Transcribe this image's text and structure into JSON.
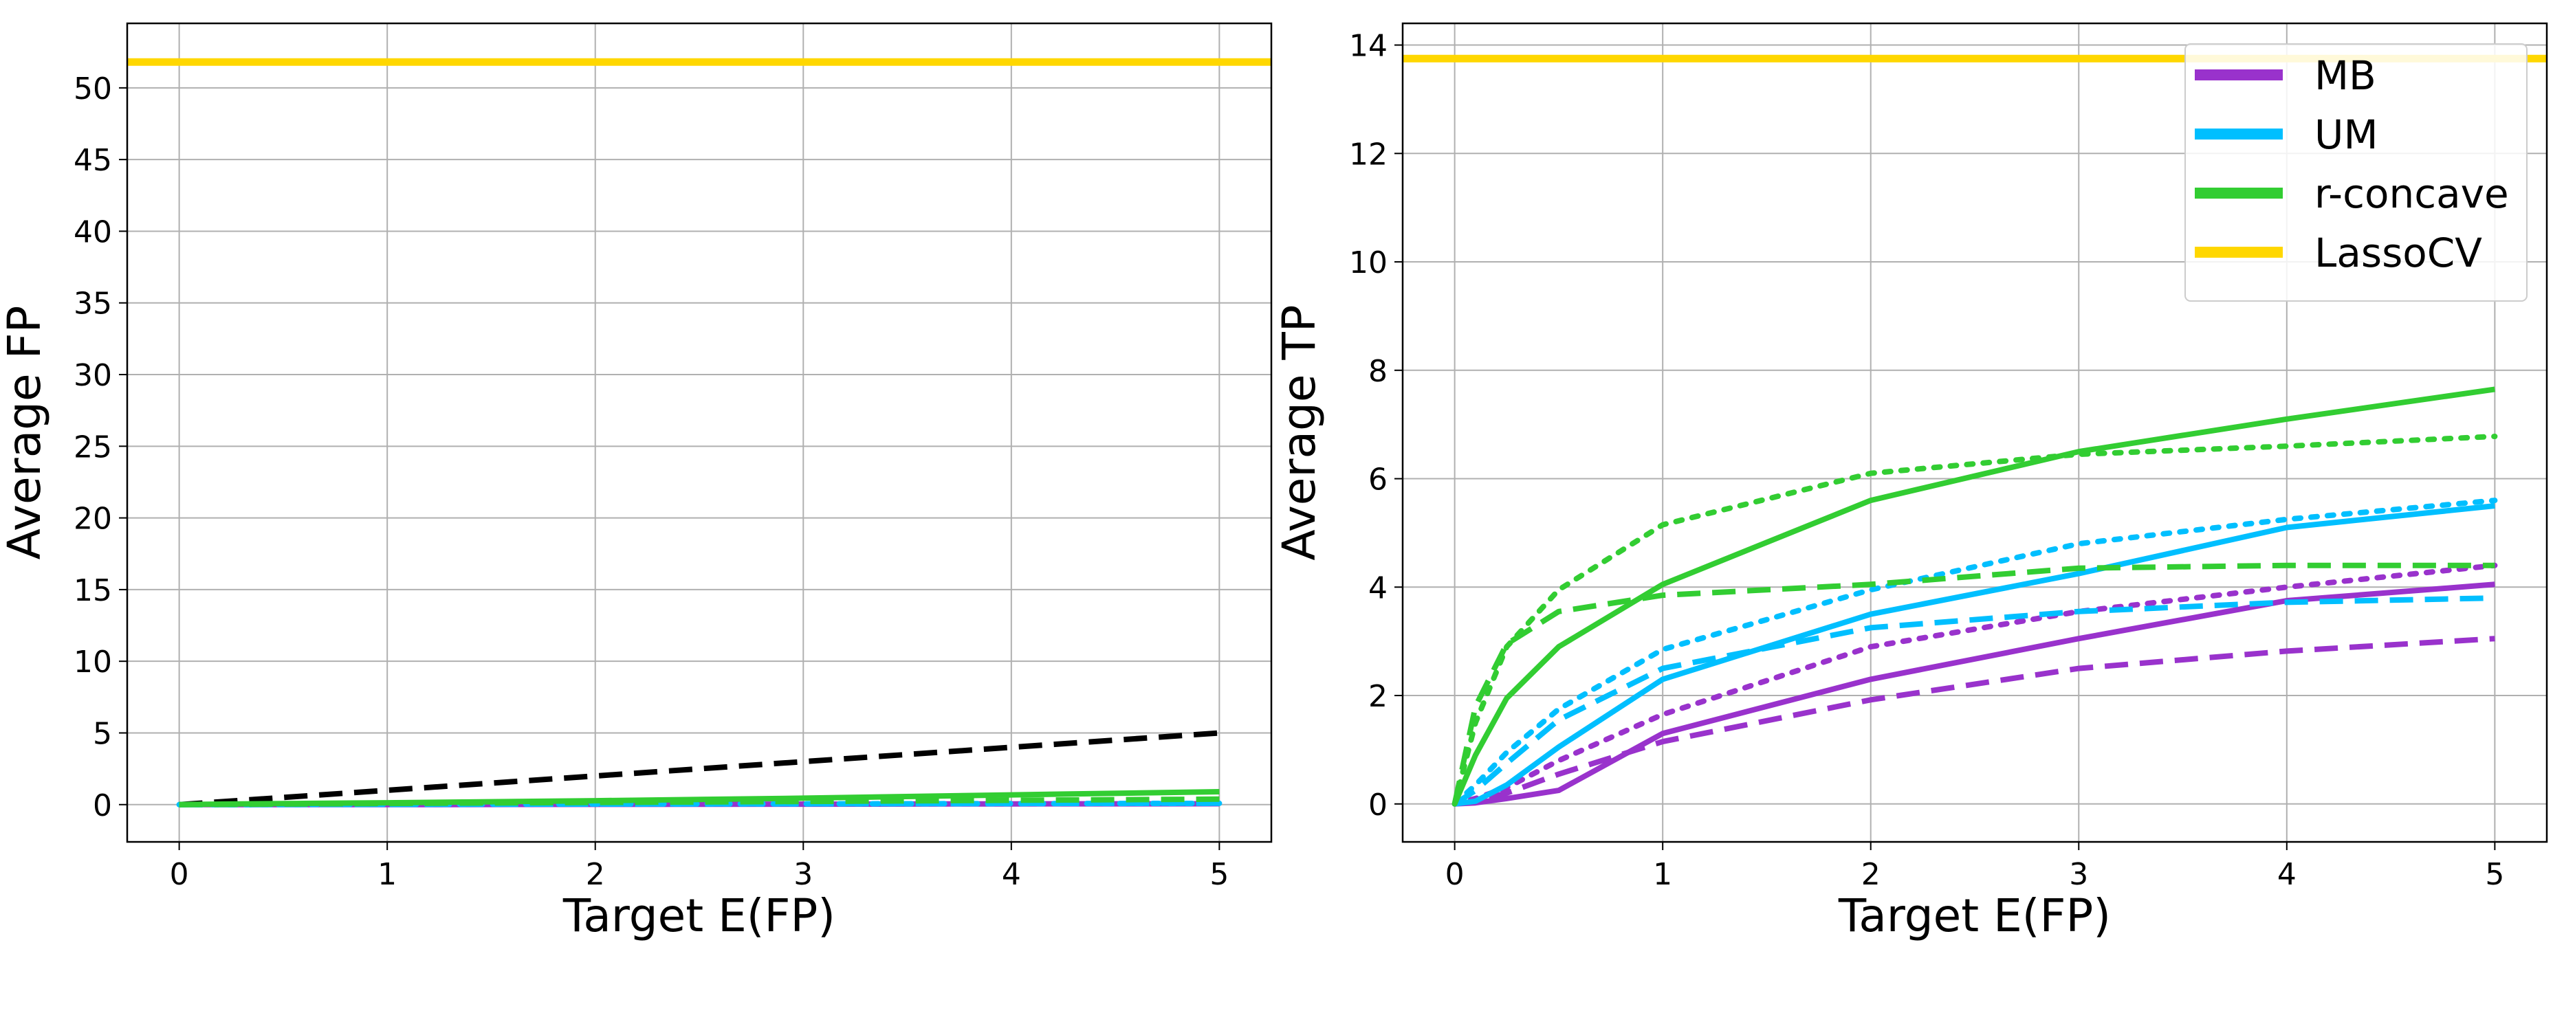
{
  "colors": {
    "MB": "#9932CC",
    "UM": "#00BFFF",
    "r-concave": "#32CD32",
    "LassoCV": "#FFD700",
    "reference": "#000000",
    "grid": "#b0b0b0"
  },
  "chart_data": [
    {
      "type": "line",
      "xlabel": "Target E(FP)",
      "ylabel": "Average FP",
      "xlim": [
        -0.25,
        5.25
      ],
      "ylim": [
        -2.6,
        54.5
      ],
      "xticks": [
        "0",
        "1",
        "2",
        "3",
        "4",
        "5"
      ],
      "yticks": [
        "0",
        "5",
        "10",
        "15",
        "20",
        "25",
        "30",
        "35",
        "40",
        "45",
        "50"
      ],
      "grid": true,
      "series": [
        {
          "method": "LassoCV",
          "style": "solid",
          "x": [
            -0.25,
            5.25
          ],
          "y": [
            51.8,
            51.8
          ]
        },
        {
          "method": "reference",
          "style": "dashed",
          "x": [
            0,
            5
          ],
          "y": [
            0,
            5
          ]
        },
        {
          "method": "MB",
          "style": "solid",
          "x": [
            0,
            0.1,
            0.25,
            0.5,
            1,
            2,
            3,
            4,
            5
          ],
          "y": [
            0,
            0,
            0,
            0,
            0,
            0.02,
            0.03,
            0.05,
            0.06
          ]
        },
        {
          "method": "UM",
          "style": "dotted",
          "x": [
            0,
            0.1,
            0.25,
            0.5,
            1,
            2,
            3,
            4,
            5
          ],
          "y": [
            0,
            0,
            0,
            0.01,
            0.02,
            0.04,
            0.05,
            0.07,
            0.09
          ]
        },
        {
          "method": "UM",
          "style": "dashed",
          "x": [
            0,
            0.1,
            0.25,
            0.5,
            1,
            2,
            3,
            4,
            5
          ],
          "y": [
            0,
            0,
            0,
            0.01,
            0.02,
            0.04,
            0.06,
            0.08,
            0.1
          ]
        },
        {
          "method": "r-concave",
          "style": "dashed",
          "x": [
            0,
            0.1,
            0.25,
            0.5,
            1,
            2,
            3,
            4,
            5
          ],
          "y": [
            0,
            0.01,
            0.02,
            0.04,
            0.08,
            0.15,
            0.22,
            0.3,
            0.38
          ]
        },
        {
          "method": "r-concave",
          "style": "solid",
          "x": [
            0,
            0.1,
            0.25,
            0.5,
            1,
            2,
            3,
            4,
            5
          ],
          "y": [
            0,
            0.02,
            0.04,
            0.07,
            0.13,
            0.27,
            0.45,
            0.68,
            0.9
          ]
        }
      ]
    },
    {
      "type": "line",
      "xlabel": "Target E(FP)",
      "ylabel": "Average TP",
      "xlim": [
        -0.25,
        5.25
      ],
      "ylim": [
        -0.7,
        14.4
      ],
      "xticks": [
        "0",
        "1",
        "2",
        "3",
        "4",
        "5"
      ],
      "yticks": [
        "0",
        "2",
        "4",
        "6",
        "8",
        "10",
        "12",
        "14"
      ],
      "grid": true,
      "legend": {
        "position": "upper right",
        "entries": [
          {
            "label": "MB",
            "method": "MB"
          },
          {
            "label": "UM",
            "method": "UM"
          },
          {
            "label": "r-concave",
            "method": "r-concave"
          },
          {
            "label": "LassoCV",
            "method": "LassoCV"
          }
        ]
      },
      "series": [
        {
          "method": "LassoCV",
          "style": "solid",
          "x": [
            -0.25,
            5.25
          ],
          "y": [
            13.75,
            13.75
          ]
        },
        {
          "method": "MB",
          "style": "solid",
          "x": [
            0,
            0.1,
            0.25,
            0.5,
            1,
            2,
            3,
            4,
            5
          ],
          "y": [
            0,
            0.02,
            0.1,
            0.25,
            1.3,
            2.3,
            3.05,
            3.75,
            4.05
          ]
        },
        {
          "method": "MB",
          "style": "dashed",
          "x": [
            0,
            0.1,
            0.25,
            0.5,
            1,
            2,
            3,
            4,
            5
          ],
          "y": [
            0,
            0.05,
            0.2,
            0.55,
            1.15,
            1.92,
            2.5,
            2.82,
            3.05
          ]
        },
        {
          "method": "MB",
          "style": "dotted",
          "x": [
            0,
            0.1,
            0.25,
            0.5,
            1,
            2,
            3,
            4,
            5
          ],
          "y": [
            0,
            0.1,
            0.3,
            0.8,
            1.65,
            2.9,
            3.55,
            4.0,
            4.4
          ]
        },
        {
          "method": "UM",
          "style": "solid",
          "x": [
            0,
            0.1,
            0.25,
            0.5,
            1,
            2,
            3,
            4,
            5
          ],
          "y": [
            0,
            0.05,
            0.35,
            1.05,
            2.3,
            3.5,
            4.25,
            5.1,
            5.5
          ]
        },
        {
          "method": "UM",
          "style": "dashed",
          "x": [
            0,
            0.1,
            0.25,
            0.5,
            1,
            2,
            3,
            4,
            5
          ],
          "y": [
            0,
            0.25,
            0.75,
            1.55,
            2.5,
            3.25,
            3.55,
            3.72,
            3.8
          ]
        },
        {
          "method": "UM",
          "style": "dotted",
          "x": [
            0,
            0.1,
            0.25,
            0.5,
            1,
            2,
            3,
            4,
            5
          ],
          "y": [
            0,
            0.35,
            0.95,
            1.75,
            2.85,
            3.95,
            4.8,
            5.25,
            5.6
          ]
        },
        {
          "method": "r-concave",
          "style": "solid",
          "x": [
            0,
            0.1,
            0.25,
            0.5,
            1,
            2,
            3,
            4,
            5
          ],
          "y": [
            0,
            0.9,
            1.95,
            2.9,
            4.05,
            5.6,
            6.5,
            7.1,
            7.65
          ]
        },
        {
          "method": "r-concave",
          "style": "dashed",
          "x": [
            0,
            0.1,
            0.25,
            0.5,
            1,
            2,
            3,
            4,
            5
          ],
          "y": [
            0,
            1.8,
            2.95,
            3.55,
            3.85,
            4.05,
            4.35,
            4.4,
            4.4
          ]
        },
        {
          "method": "r-concave",
          "style": "dotted",
          "x": [
            0,
            0.1,
            0.25,
            0.5,
            1,
            2,
            3,
            4,
            5
          ],
          "y": [
            0,
            1.5,
            2.9,
            3.95,
            5.15,
            6.1,
            6.45,
            6.6,
            6.78
          ]
        }
      ]
    }
  ]
}
